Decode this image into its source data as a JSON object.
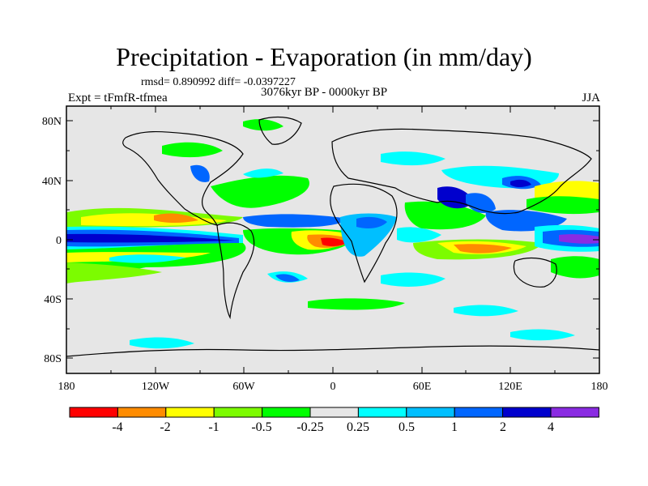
{
  "title": "Precipitation - Evaporation (in mm/day)",
  "stats": "rmsd= 0.890992 diff= -0.0397227",
  "period": "3076kyr BP - 0000kyr BP",
  "expt": "Expt = tFmfR-tfmea",
  "season": "JJA",
  "map": {
    "lat_labels": [
      "80N",
      "40N",
      "0",
      "40S",
      "80S"
    ],
    "lon_labels": [
      "180",
      "120W",
      "60W",
      "0",
      "60E",
      "120E",
      "180"
    ],
    "background_color": "#e6e6e6",
    "coastline_color": "#000000"
  },
  "colorbar": {
    "labels": [
      "-4",
      "-2",
      "-1",
      "-0.5",
      "-0.25",
      "0.25",
      "0.5",
      "1",
      "2",
      "4"
    ],
    "colors": [
      "#ff0000",
      "#ff8c00",
      "#ffff00",
      "#7cfc00",
      "#00ff00",
      "#e6e6e6",
      "#00ffff",
      "#00bfff",
      "#0066ff",
      "#0000cd",
      "#8a2be2"
    ]
  }
}
